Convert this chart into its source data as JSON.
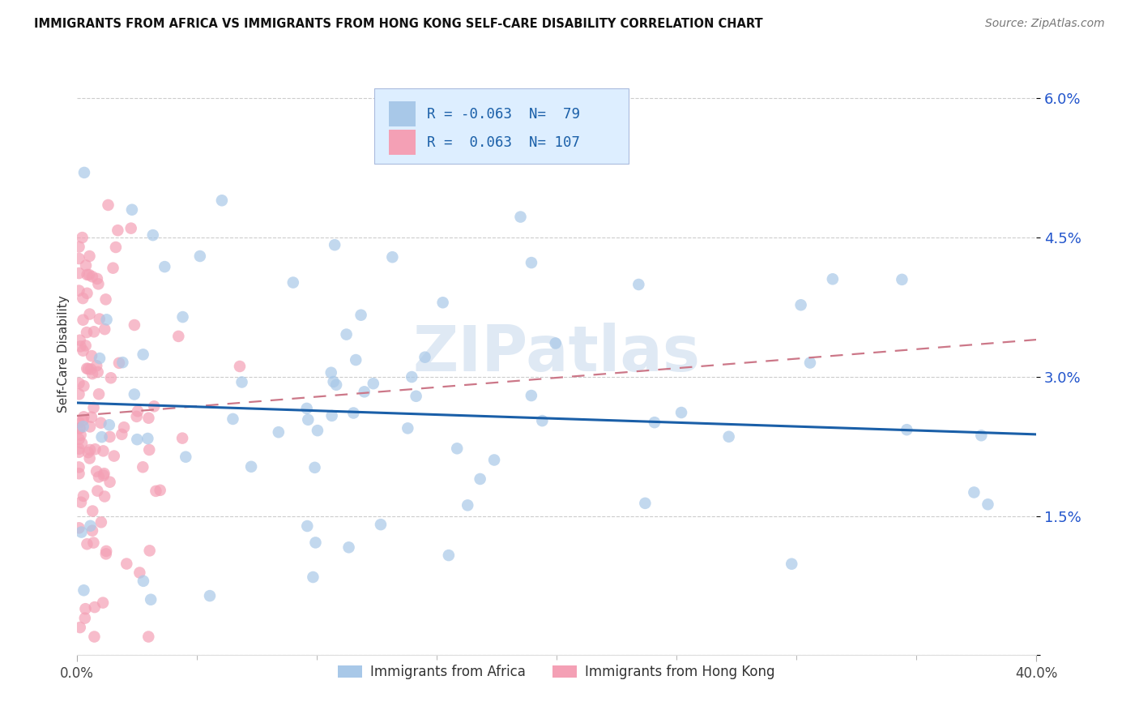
{
  "title": "IMMIGRANTS FROM AFRICA VS IMMIGRANTS FROM HONG KONG SELF-CARE DISABILITY CORRELATION CHART",
  "source": "Source: ZipAtlas.com",
  "ylabel": "Self-Care Disability",
  "yticks": [
    0.0,
    0.015,
    0.03,
    0.045,
    0.06
  ],
  "ytick_labels": [
    "",
    "1.5%",
    "3.0%",
    "4.5%",
    "6.0%"
  ],
  "xmin": 0.0,
  "xmax": 0.4,
  "ymin": 0.0,
  "ymax": 0.065,
  "africa_color_fill": "#a8c8e8",
  "hk_color_fill": "#f4a0b5",
  "africa_line_color": "#1a5fa8",
  "hk_line_color": "#cc7788",
  "grid_color": "#cccccc",
  "africa_R": -0.063,
  "africa_N": 79,
  "hk_R": 0.063,
  "hk_N": 107,
  "watermark": "ZIPatlas",
  "africa_line_x": [
    0.0,
    0.4
  ],
  "africa_line_y": [
    0.0272,
    0.0238
  ],
  "hk_line_x": [
    0.0,
    0.4
  ],
  "hk_line_y": [
    0.0258,
    0.034
  ]
}
